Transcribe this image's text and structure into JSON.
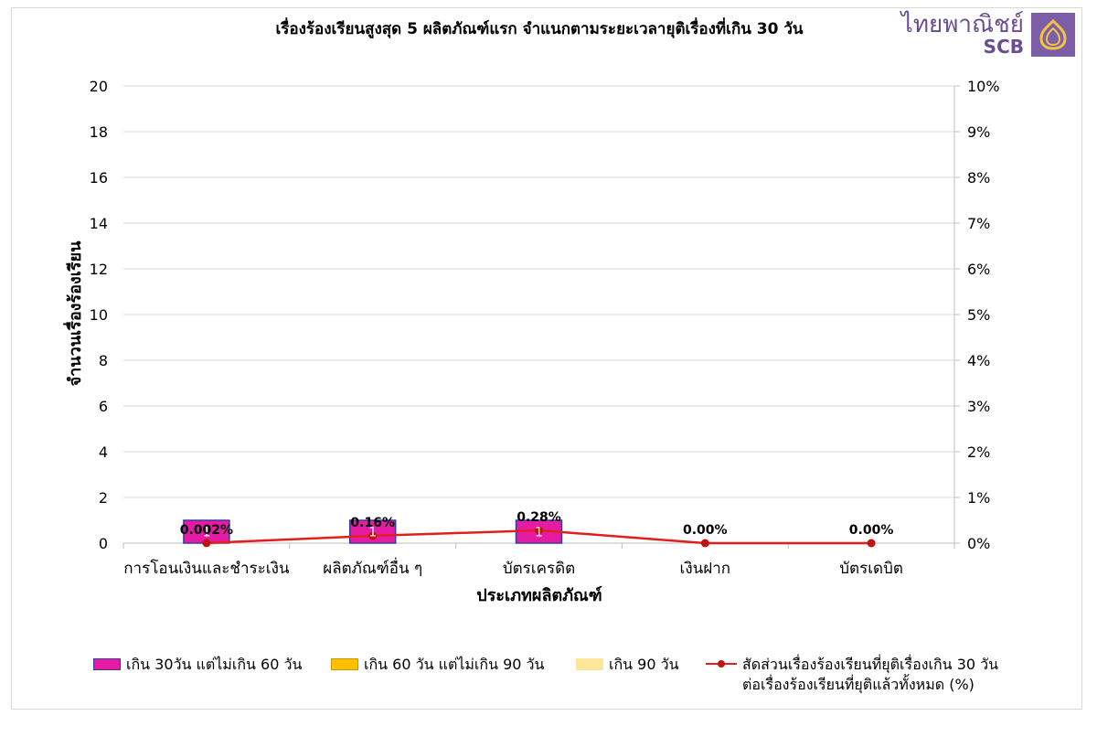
{
  "chart_data": {
    "type": "bar",
    "title": "เรื่องร้องเรียนสูงสุด 5 ผลิตภัณฑ์แรก จำแนกตามระยะเวลายุติเรื่องที่เกิน 30 วัน",
    "xlabel": "ประเภทผลิตภัณฑ์",
    "ylabel": "จำนวนเรื่องร้องเรียน",
    "ylim": [
      0,
      20
    ],
    "y_ticks": [
      "0",
      "2",
      "4",
      "6",
      "8",
      "10",
      "12",
      "14",
      "16",
      "18",
      "20"
    ],
    "y2lim": [
      0,
      10
    ],
    "y2_ticks": [
      "0%",
      "1%",
      "2%",
      "3%",
      "4%",
      "5%",
      "6%",
      "7%",
      "8%",
      "9%",
      "10%"
    ],
    "categories": [
      "การโอนเงินและชำระเงิน",
      "ผลิตภัณฑ์อื่น ๆ",
      "บัตรเครดิต",
      "เงินฝาก",
      "บัตรเดบิต"
    ],
    "series": [
      {
        "name": "เกิน 30วัน แต่ไม่เกิน 60 วัน",
        "type": "bar",
        "values": [
          1,
          1,
          1,
          0,
          0
        ],
        "value_labels": [
          "1",
          "1",
          "1",
          "",
          ""
        ],
        "color": "#e51ba3",
        "border": "#3a3aa0"
      },
      {
        "name": "เกิน 60 วัน แต่ไม่เกิน 90 วัน",
        "type": "bar",
        "values": [
          0,
          0,
          0,
          0,
          0
        ],
        "color": "#ffc000",
        "border": "#c99400"
      },
      {
        "name": "เกิน 90 วัน",
        "type": "bar",
        "values": [
          0,
          0,
          0,
          0,
          0
        ],
        "color": "#fce69a",
        "border": "#fce69a"
      },
      {
        "name": "สัดส่วนเรื่องร้องเรียนที่ยุติเรื่องเกิน 30 วัน\nต่อเรื่องร้องเรียนที่ยุติแล้วทั้งหมด (%)",
        "type": "line",
        "axis": "right",
        "values": [
          0.002,
          0.16,
          0.28,
          0.0,
          0.0
        ],
        "value_labels": [
          "0.002%",
          "0.16%",
          "0.28%",
          "0.00%",
          "0.00%"
        ],
        "color": "#e0201c"
      }
    ],
    "grid": true,
    "legend_position": "bottom"
  },
  "logo": {
    "thai_text": "ไทยพาณิชย์",
    "english_text": "SCB",
    "color": "#6a4c93"
  }
}
